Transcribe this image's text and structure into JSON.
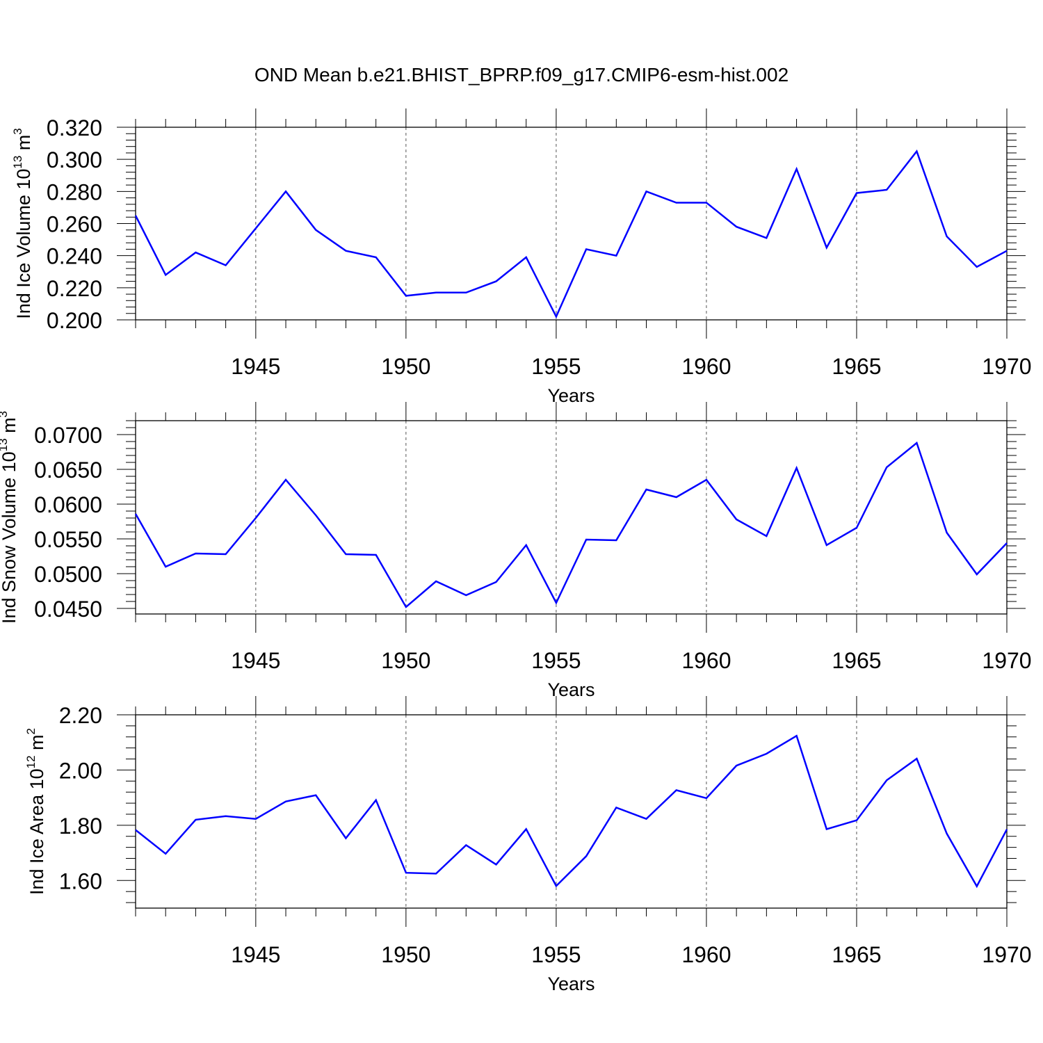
{
  "title": "OND Mean b.e21.BHIST_BPRP.f09_g17.CMIP6-esm-hist.002",
  "colors": {
    "line": "#0000ff",
    "axis": "#000000",
    "grid": "#555555"
  },
  "chart_data": [
    {
      "type": "line",
      "ylabel": {
        "main": "Ind Ice Volume 10",
        "sup": "13",
        "unit": "m",
        "unit_sup": "3"
      },
      "xlabel": "Years",
      "xlim": [
        1941,
        1970
      ],
      "ylim": [
        0.2,
        0.32
      ],
      "yticks": [
        0.2,
        0.22,
        0.24,
        0.26,
        0.28,
        0.3,
        0.32
      ],
      "ytick_labels": [
        "0.200",
        "0.220",
        "0.240",
        "0.260",
        "0.280",
        "0.300",
        "0.320"
      ],
      "xticks": [
        1945,
        1950,
        1955,
        1960,
        1965,
        1970
      ],
      "xtick_labels": [
        "1945",
        "1950",
        "1955",
        "1960",
        "1965",
        "1970"
      ],
      "grid": "vertical dashed at major x ticks",
      "x": [
        1941,
        1942,
        1943,
        1944,
        1945,
        1946,
        1947,
        1948,
        1949,
        1950,
        1951,
        1952,
        1953,
        1954,
        1955,
        1956,
        1957,
        1958,
        1959,
        1960,
        1961,
        1962,
        1963,
        1964,
        1965,
        1966,
        1967,
        1968,
        1969,
        1970
      ],
      "values": [
        0.265,
        0.228,
        0.242,
        0.234,
        0.257,
        0.28,
        0.256,
        0.243,
        0.239,
        0.215,
        0.217,
        0.217,
        0.224,
        0.239,
        0.202,
        0.244,
        0.24,
        0.28,
        0.273,
        0.273,
        0.258,
        0.251,
        0.294,
        0.245,
        0.279,
        0.281,
        0.305,
        0.252,
        0.233,
        0.243
      ]
    },
    {
      "type": "line",
      "ylabel": {
        "main": "Ind Snow Volume 10",
        "sup": "13",
        "unit": "m",
        "unit_sup": "3"
      },
      "xlabel": "Years",
      "xlim": [
        1941,
        1970
      ],
      "ylim": [
        0.0442,
        0.072
      ],
      "yticks": [
        0.045,
        0.05,
        0.055,
        0.06,
        0.065,
        0.07
      ],
      "ytick_labels": [
        "0.0450",
        "0.0500",
        "0.0550",
        "0.0600",
        "0.0650",
        "0.0700"
      ],
      "xticks": [
        1945,
        1950,
        1955,
        1960,
        1965,
        1970
      ],
      "xtick_labels": [
        "1945",
        "1950",
        "1955",
        "1960",
        "1965",
        "1970"
      ],
      "grid": "vertical dashed at major x ticks",
      "x": [
        1941,
        1942,
        1943,
        1944,
        1945,
        1946,
        1947,
        1948,
        1949,
        1950,
        1951,
        1952,
        1953,
        1954,
        1955,
        1956,
        1957,
        1958,
        1959,
        1960,
        1961,
        1962,
        1963,
        1964,
        1965,
        1966,
        1967,
        1968,
        1969,
        1970
      ],
      "values": [
        0.0586,
        0.051,
        0.0529,
        0.0528,
        0.058,
        0.0635,
        0.0584,
        0.0528,
        0.0527,
        0.0452,
        0.0489,
        0.0469,
        0.0488,
        0.0541,
        0.0458,
        0.0549,
        0.0548,
        0.0621,
        0.061,
        0.0635,
        0.0578,
        0.0554,
        0.0652,
        0.0541,
        0.0566,
        0.0653,
        0.0688,
        0.0559,
        0.0499,
        0.0544
      ]
    },
    {
      "type": "line",
      "ylabel": {
        "main": "Ind Ice Area 10",
        "sup": "12",
        "unit": "m",
        "unit_sup": "2"
      },
      "xlabel": "Years",
      "xlim": [
        1941,
        1970
      ],
      "ylim": [
        1.5,
        2.2
      ],
      "yticks": [
        1.6,
        1.8,
        2.0,
        2.2
      ],
      "ytick_labels": [
        "1.60",
        "1.80",
        "2.00",
        "2.20"
      ],
      "xticks": [
        1945,
        1950,
        1955,
        1960,
        1965,
        1970
      ],
      "xtick_labels": [
        "1945",
        "1950",
        "1955",
        "1960",
        "1965",
        "1970"
      ],
      "grid": "vertical dashed at major x ticks",
      "x": [
        1941,
        1942,
        1943,
        1944,
        1945,
        1946,
        1947,
        1948,
        1949,
        1950,
        1951,
        1952,
        1953,
        1954,
        1955,
        1956,
        1957,
        1958,
        1959,
        1960,
        1961,
        1962,
        1963,
        1964,
        1965,
        1966,
        1967,
        1968,
        1969,
        1970
      ],
      "values": [
        1.783,
        1.697,
        1.82,
        1.833,
        1.823,
        1.886,
        1.909,
        1.753,
        1.891,
        1.628,
        1.625,
        1.728,
        1.658,
        1.786,
        1.58,
        1.688,
        1.864,
        1.823,
        1.927,
        1.898,
        2.016,
        2.059,
        2.124,
        1.786,
        1.818,
        1.963,
        2.041,
        1.77,
        1.579,
        1.785
      ]
    }
  ]
}
